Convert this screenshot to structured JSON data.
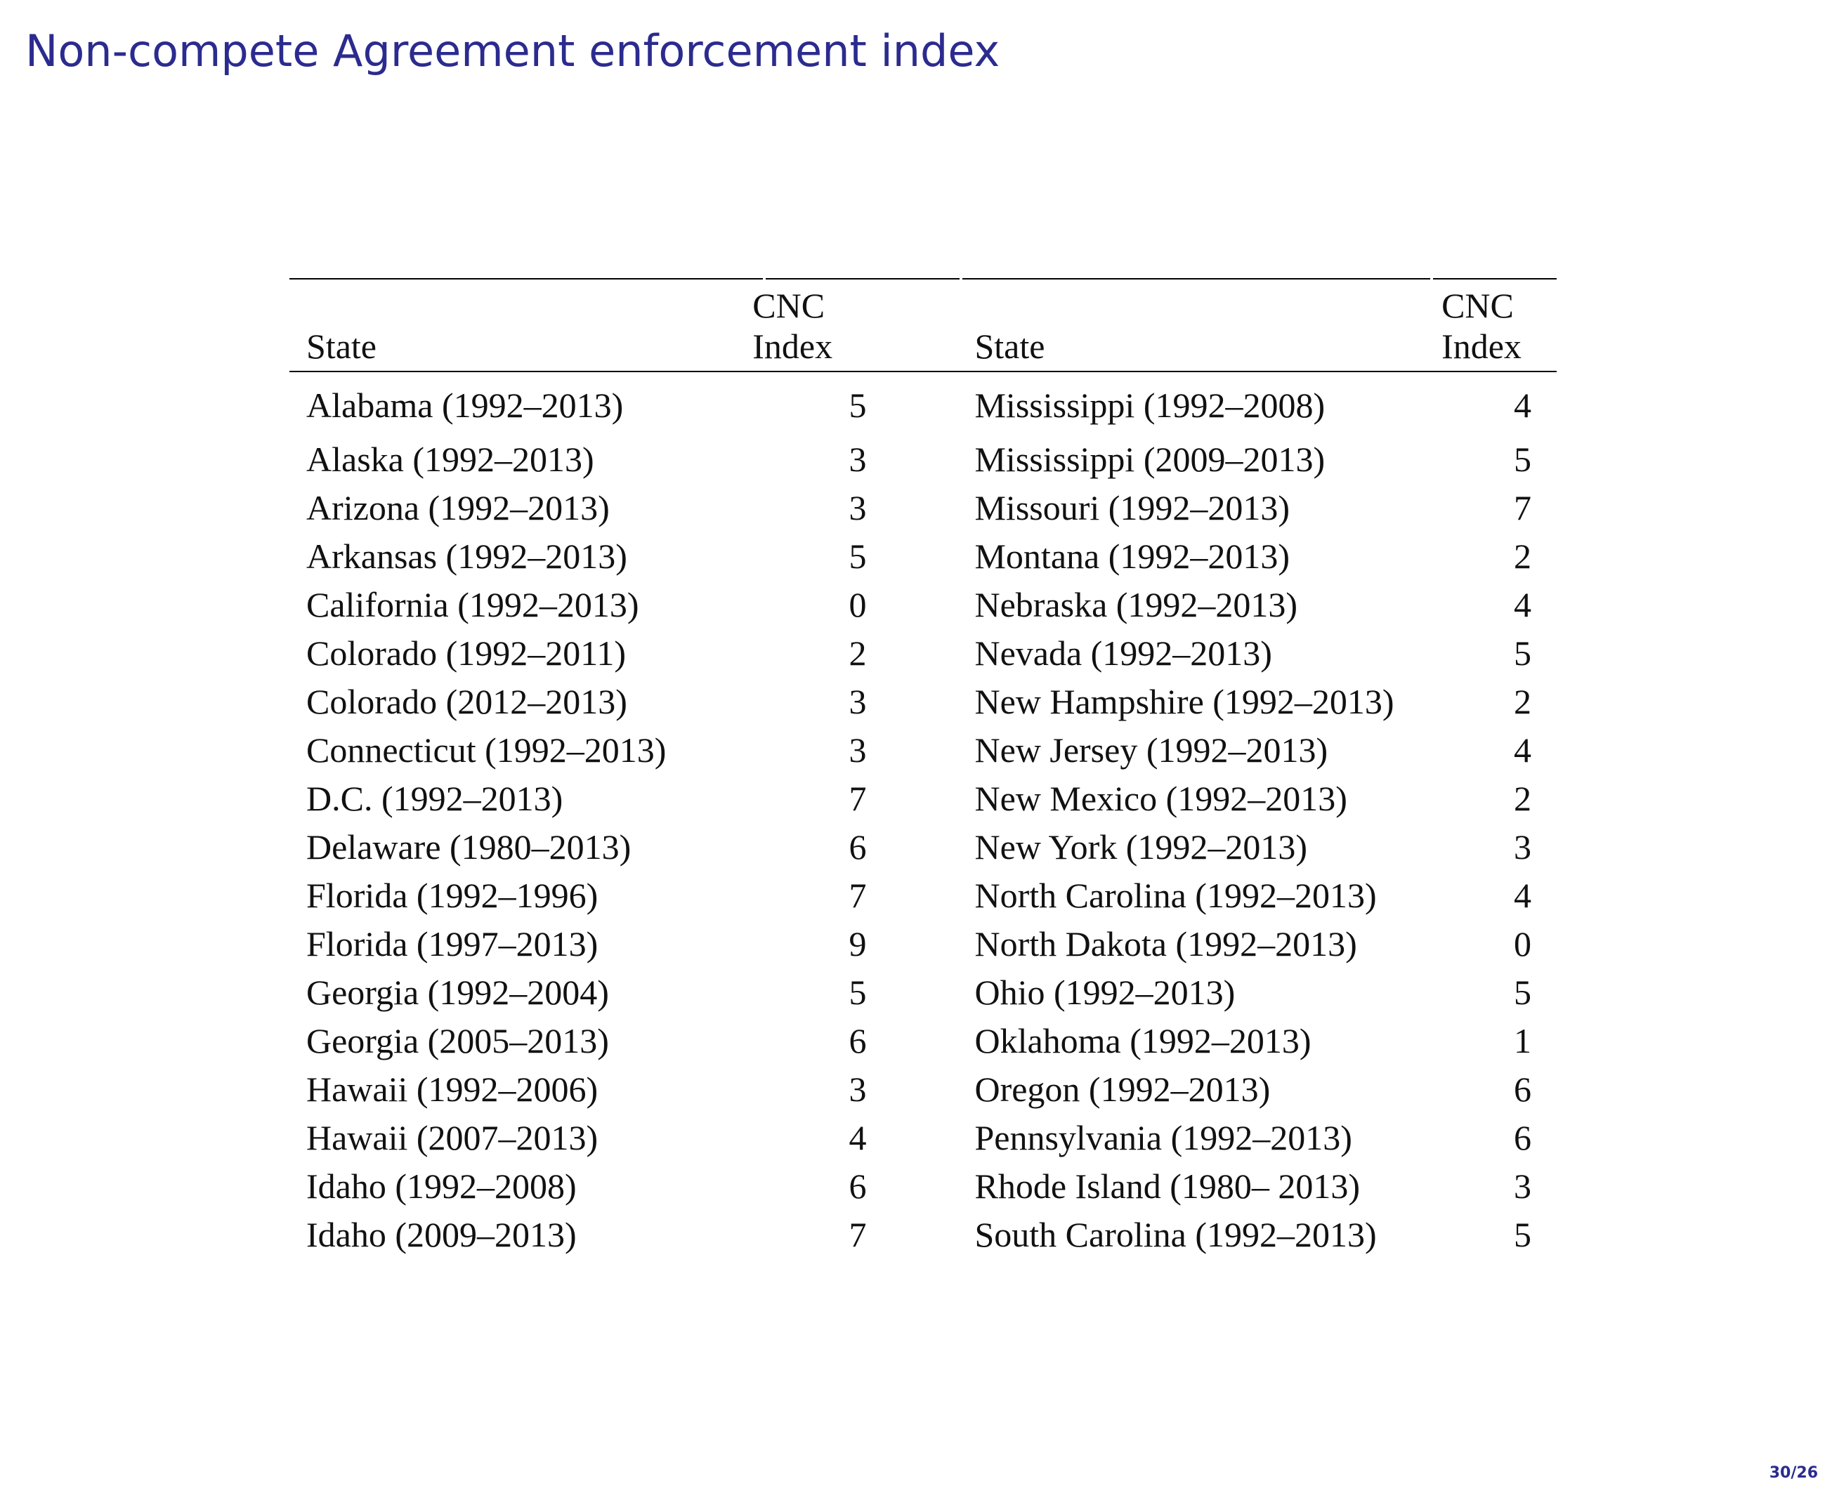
{
  "slide": {
    "title": "Non-compete Agreement enforcement index",
    "page_number": "30/26"
  },
  "table": {
    "headers": {
      "state_left": "State",
      "index_left_line1": "CNC",
      "index_left_line2": "Index",
      "state_right": "State",
      "index_right_line1": "CNC",
      "index_right_line2": "Index"
    },
    "rows": [
      {
        "left_state": "Alabama (1992–2013)",
        "left_index": "5",
        "right_state": "Mississippi (1992–2008)",
        "right_index": "4"
      },
      {
        "left_state": "Alaska (1992–2013)",
        "left_index": "3",
        "right_state": "Mississippi (2009–2013)",
        "right_index": "5"
      },
      {
        "left_state": "Arizona (1992–2013)",
        "left_index": "3",
        "right_state": "Missouri (1992–2013)",
        "right_index": "7"
      },
      {
        "left_state": "Arkansas (1992–2013)",
        "left_index": "5",
        "right_state": "Montana (1992–2013)",
        "right_index": "2"
      },
      {
        "left_state": "California (1992–2013)",
        "left_index": "0",
        "right_state": "Nebraska (1992–2013)",
        "right_index": "4"
      },
      {
        "left_state": "Colorado (1992–2011)",
        "left_index": "2",
        "right_state": "Nevada (1992–2013)",
        "right_index": "5"
      },
      {
        "left_state": "Colorado (2012–2013)",
        "left_index": "3",
        "right_state": "New Hampshire (1992–2013)",
        "right_index": "2"
      },
      {
        "left_state": "Connecticut (1992–2013)",
        "left_index": "3",
        "right_state": "New Jersey (1992–2013)",
        "right_index": "4"
      },
      {
        "left_state": "D.C. (1992–2013)",
        "left_index": "7",
        "right_state": "New Mexico (1992–2013)",
        "right_index": "2"
      },
      {
        "left_state": "Delaware (1980–2013)",
        "left_index": "6",
        "right_state": "New York (1992–2013)",
        "right_index": "3"
      },
      {
        "left_state": "Florida (1992–1996)",
        "left_index": "7",
        "right_state": "North Carolina (1992–2013)",
        "right_index": "4"
      },
      {
        "left_state": "Florida (1997–2013)",
        "left_index": "9",
        "right_state": "North Dakota (1992–2013)",
        "right_index": "0"
      },
      {
        "left_state": "Georgia (1992–2004)",
        "left_index": "5",
        "right_state": "Ohio (1992–2013)",
        "right_index": "5"
      },
      {
        "left_state": "Georgia (2005–2013)",
        "left_index": "6",
        "right_state": "Oklahoma (1992–2013)",
        "right_index": "1"
      },
      {
        "left_state": "Hawaii (1992–2006)",
        "left_index": "3",
        "right_state": "Oregon (1992–2013)",
        "right_index": "6"
      },
      {
        "left_state": "Hawaii (2007–2013)",
        "left_index": "4",
        "right_state": "Pennsylvania (1992–2013)",
        "right_index": "6"
      },
      {
        "left_state": "Idaho (1992–2008)",
        "left_index": "6",
        "right_state": "Rhode Island (1980– 2013)",
        "right_index": "3"
      },
      {
        "left_state": "Idaho (2009–2013)",
        "left_index": "7",
        "right_state": "South Carolina (1992–2013)",
        "right_index": "5"
      }
    ]
  }
}
